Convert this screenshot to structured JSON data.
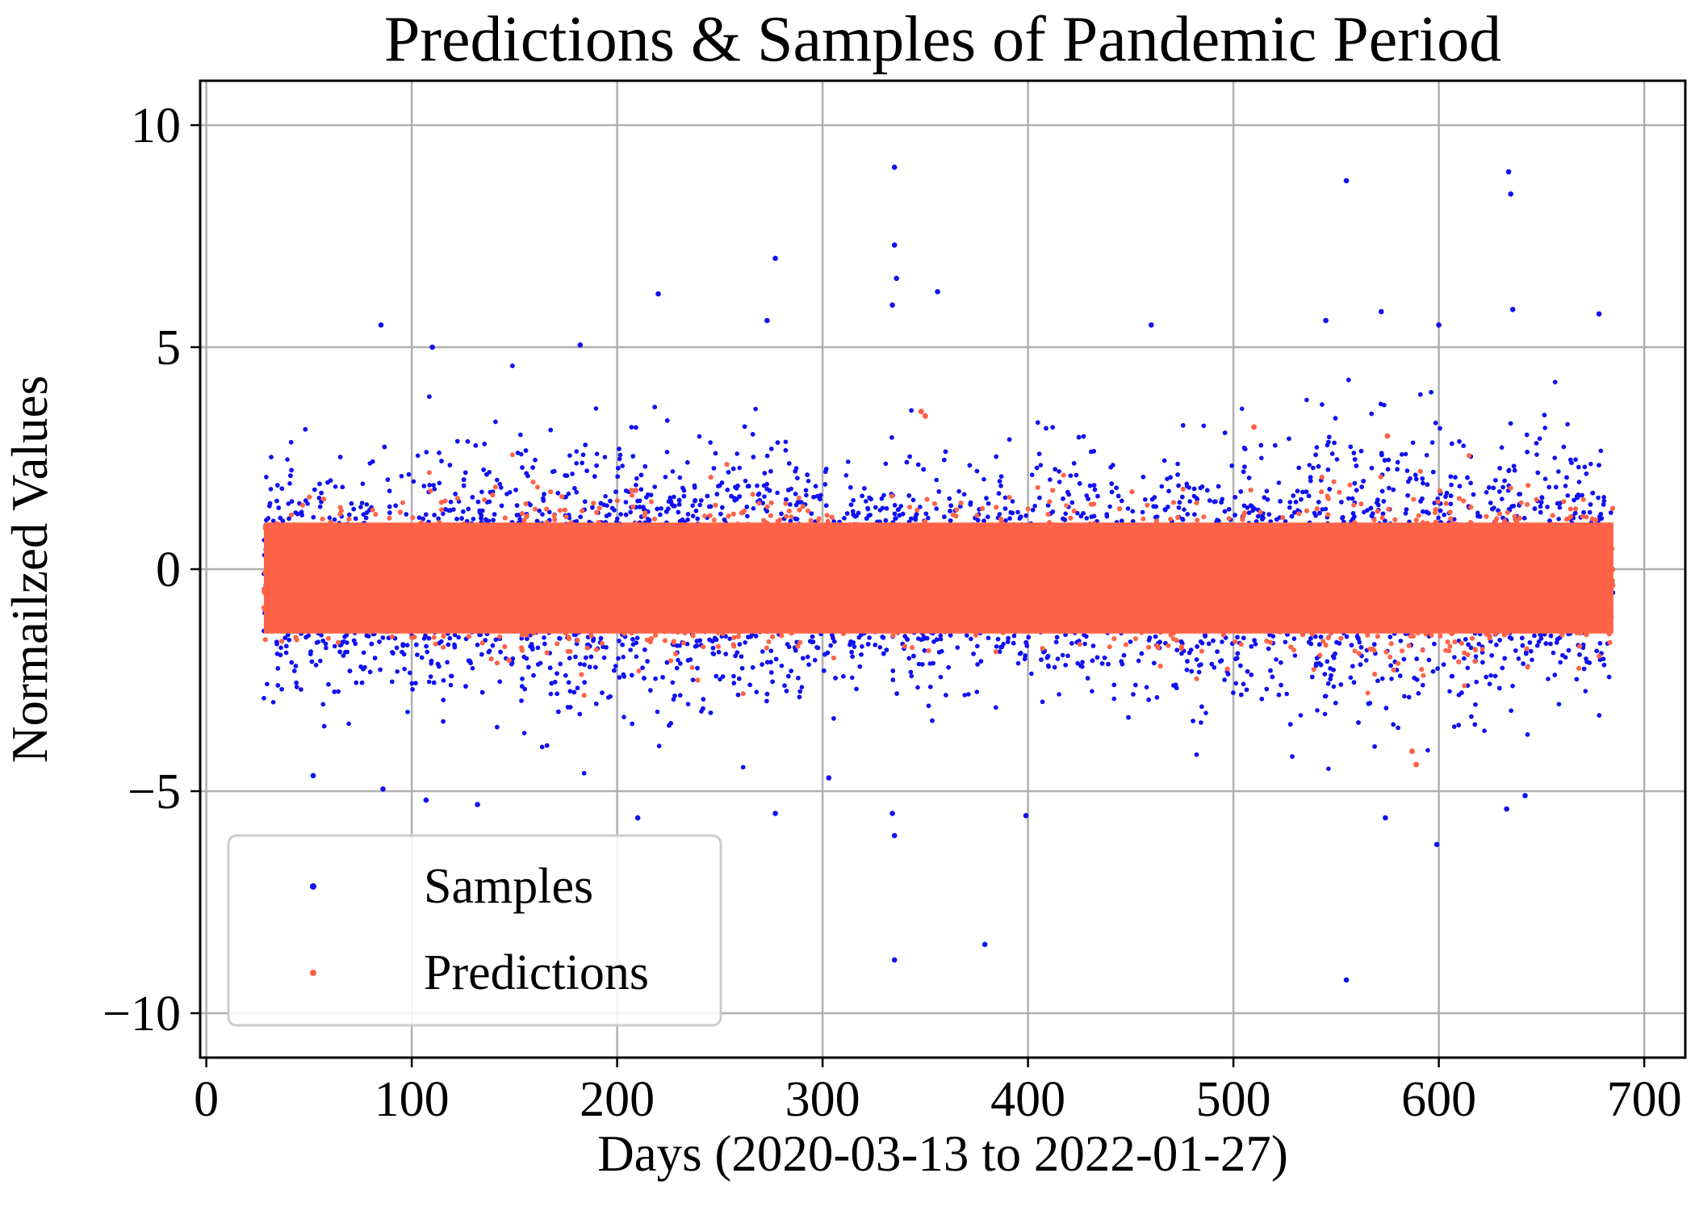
{
  "chart_data": {
    "type": "scatter",
    "title": "Predictions & Samples of Pandemic Period",
    "xlabel": "Days (2020-03-13 to 2022-01-27)",
    "ylabel": "Normailzed Values",
    "xlim": [
      -3,
      720
    ],
    "ylim": [
      -11.0,
      11.0
    ],
    "xticks": [
      0,
      100,
      200,
      300,
      400,
      500,
      600,
      700
    ],
    "xtick_labels": [
      "0",
      "100",
      "200",
      "300",
      "400",
      "500",
      "600",
      "700"
    ],
    "yticks": [
      -10,
      -5,
      0,
      5,
      10
    ],
    "ytick_labels": [
      "−10",
      "−5",
      "0",
      "5",
      "10"
    ],
    "grid": true,
    "legend_position": "lower-left",
    "x_range_of_points": [
      28,
      685
    ],
    "series": [
      {
        "name": "Samples",
        "color": "#1010f0",
        "typical_spread": {
          "upper": 4.0,
          "lower": -3.3
        },
        "notable_points": [
          [
            335,
            9.05
          ],
          [
            555,
            8.75
          ],
          [
            634,
            8.95
          ],
          [
            635,
            8.45
          ],
          [
            335,
            7.3
          ],
          [
            277,
            7.0
          ],
          [
            336,
            6.55
          ],
          [
            220,
            6.2
          ],
          [
            356,
            6.25
          ],
          [
            334,
            5.95
          ],
          [
            273,
            5.6
          ],
          [
            85,
            5.5
          ],
          [
            460,
            5.5
          ],
          [
            545,
            5.6
          ],
          [
            572,
            5.8
          ],
          [
            600,
            5.5
          ],
          [
            636,
            5.85
          ],
          [
            678,
            5.75
          ],
          [
            110,
            5.0
          ],
          [
            182,
            5.05
          ],
          [
            334,
            -5.5
          ],
          [
            335,
            -6.0
          ],
          [
            399,
            -5.55
          ],
          [
            574,
            -5.6
          ],
          [
            599,
            -6.2
          ],
          [
            210,
            -5.6
          ],
          [
            277,
            -5.5
          ],
          [
            303,
            -4.7
          ],
          [
            132,
            -5.3
          ],
          [
            107,
            -5.2
          ],
          [
            86,
            -4.95
          ],
          [
            52,
            -4.65
          ],
          [
            335,
            -8.8
          ],
          [
            379,
            -8.45
          ],
          [
            555,
            -9.25
          ],
          [
            642,
            -5.1
          ],
          [
            633,
            -5.4
          ]
        ]
      },
      {
        "name": "Predictions",
        "color": "#ff6347",
        "typical_spread": {
          "upper": 1.8,
          "lower": -2.2
        },
        "notable_points": [
          [
            348,
            3.55
          ],
          [
            350,
            3.45
          ],
          [
            510,
            3.2
          ],
          [
            575,
            3.0
          ],
          [
            589,
            -4.4
          ],
          [
            587,
            -4.1
          ]
        ]
      }
    ]
  }
}
